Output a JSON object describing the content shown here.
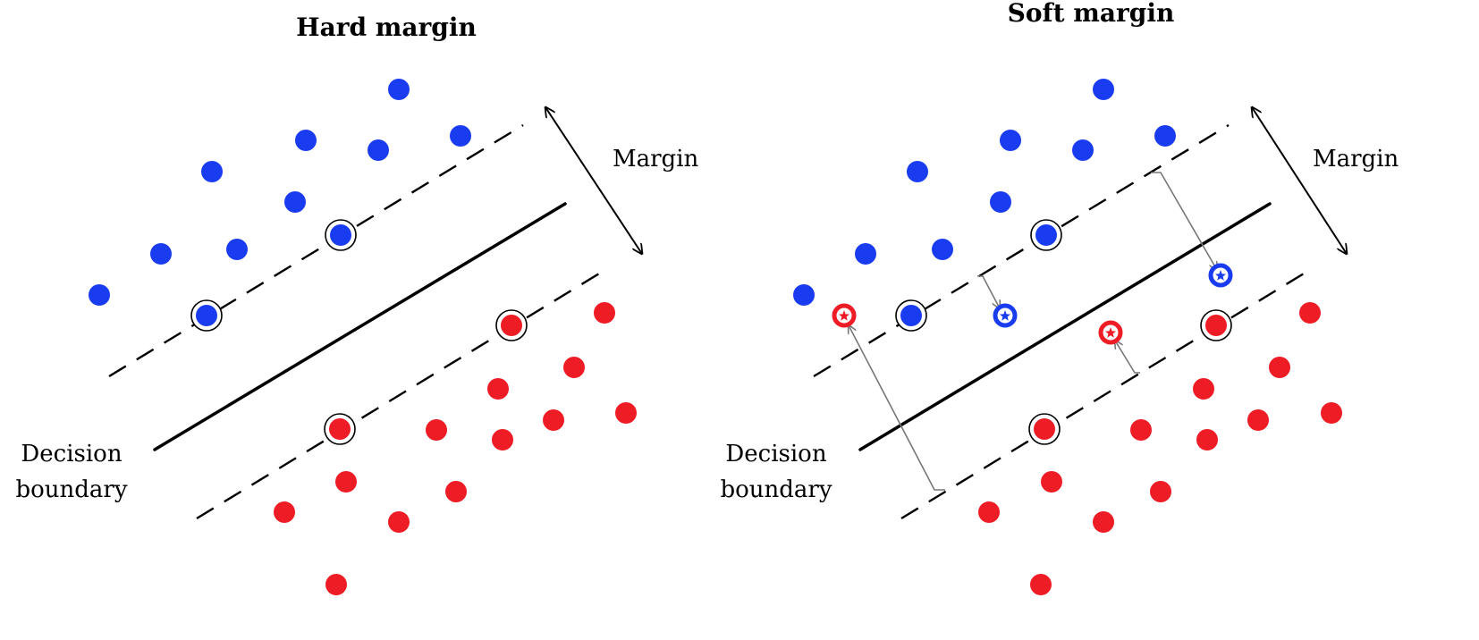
{
  "panels": [
    {
      "title": "Hard margin",
      "margin_label": "Margin",
      "boundary_label_line1": "Decision",
      "boundary_label_line2": "boundary"
    },
    {
      "title": "Soft margin",
      "margin_label": "Margin",
      "boundary_label_line1": "Decision",
      "boundary_label_line2": "boundary"
    }
  ],
  "colors": {
    "positive_class": "#1a3cf0",
    "negative_class": "#ee1c24",
    "boundary": "#000000",
    "slack_arrow": "#777777"
  },
  "icons": {
    "support_vector": "circled-dot-icon",
    "slack_point": "star-in-circle-icon"
  }
}
